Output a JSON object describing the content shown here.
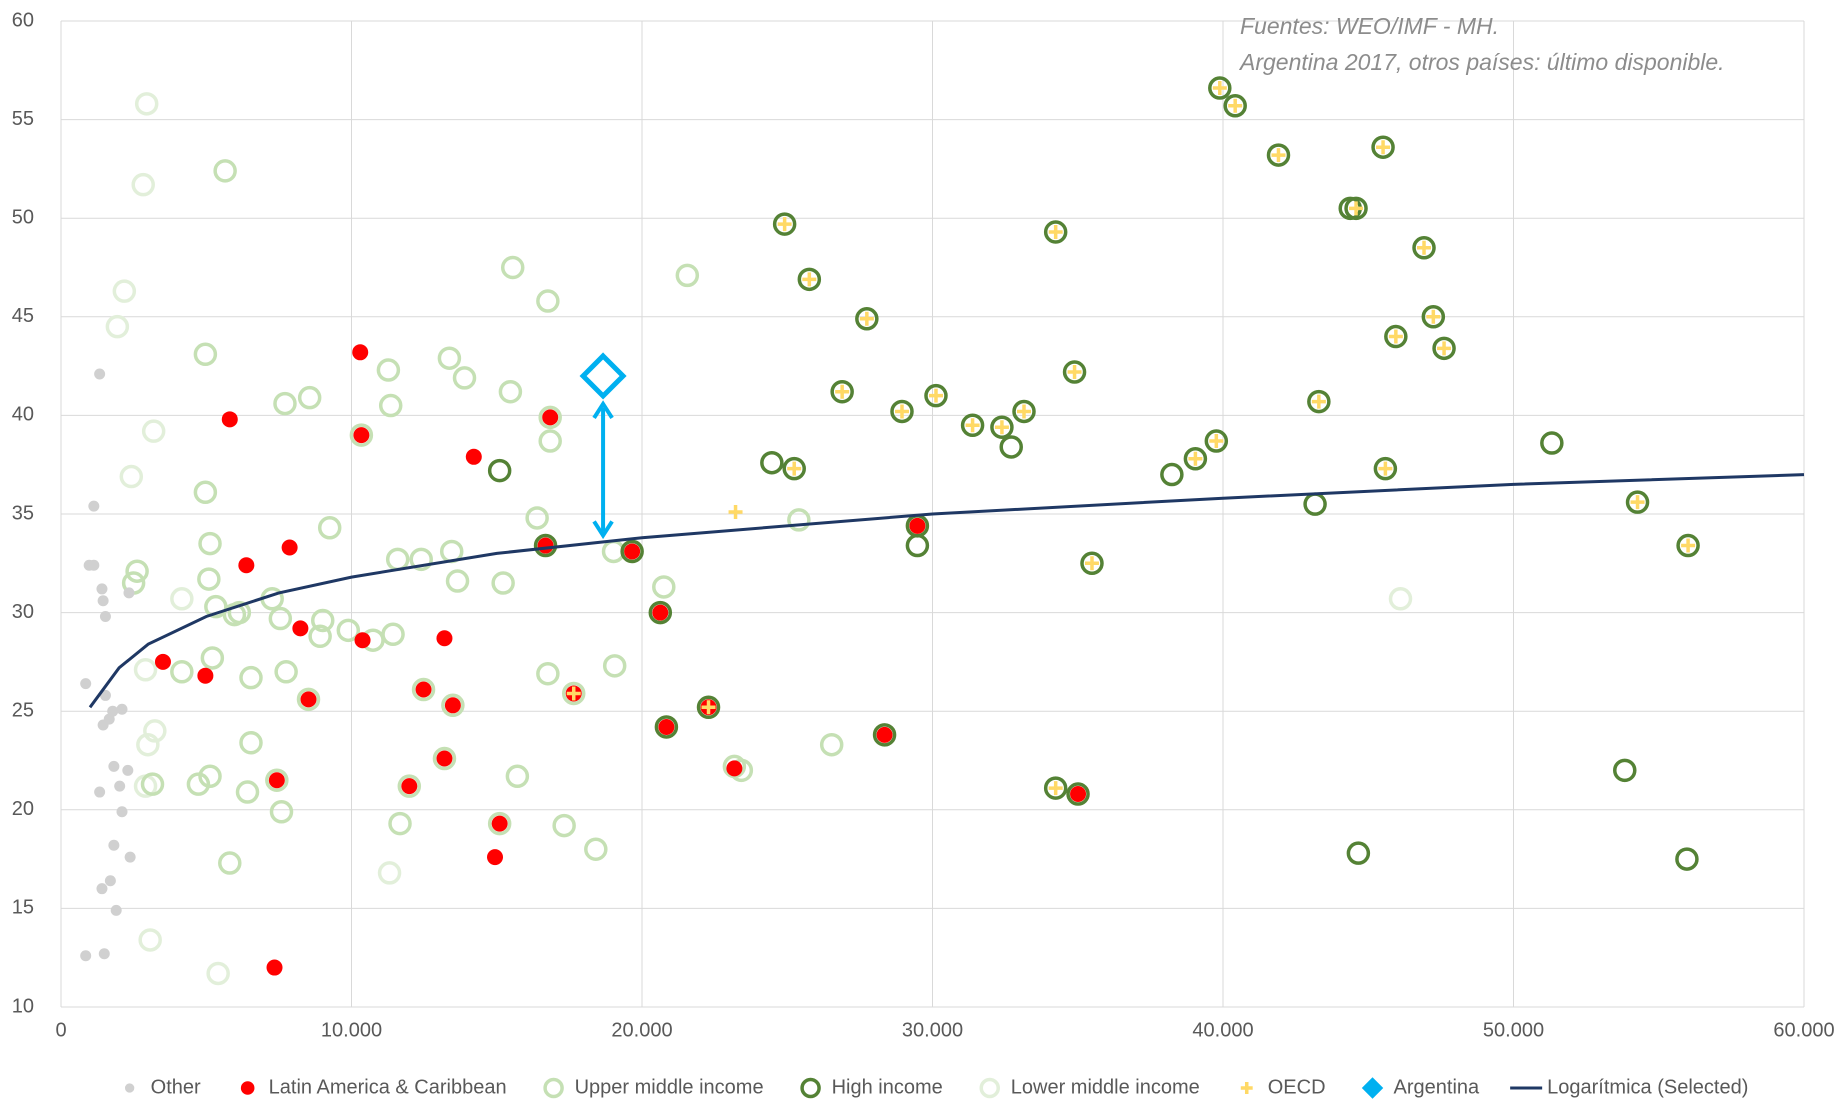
{
  "chart_data": {
    "type": "scatter",
    "annotations": [
      "Fuentes: WEO/IMF - MH.",
      "Argentina 2017, otros países: último disponible."
    ],
    "xlim": [
      0,
      60000
    ],
    "ylim": [
      10,
      60
    ],
    "xticks": [
      0,
      {
        "value": 10000,
        "label": "10.000"
      },
      {
        "value": 20000,
        "label": "20.000"
      },
      {
        "value": 30000,
        "label": "30.000"
      },
      {
        "value": 40000,
        "label": "40.000"
      },
      {
        "value": 50000,
        "label": "50.000"
      },
      {
        "value": 60000,
        "label": "60.000"
      }
    ],
    "yticks": [
      10,
      15,
      20,
      25,
      30,
      35,
      40,
      45,
      50,
      55,
      60
    ],
    "grid": true,
    "legend": "bottom",
    "series": [
      {
        "name": "Other",
        "color": "#d0d0d0",
        "marker": "dot",
        "x": [
          850,
          1330,
          1130,
          970,
          1130,
          1410,
          1450,
          1530,
          2340,
          1330,
          1450,
          1660,
          1530,
          1780,
          2100,
          1820,
          2300,
          2020,
          2100,
          1820,
          2380,
          1700,
          1410,
          1900,
          1490,
          850
        ],
        "y": [
          26.4,
          42.1,
          35.4,
          32.4,
          32.4,
          31.2,
          30.6,
          29.8,
          31.0,
          20.9,
          24.3,
          24.6,
          25.8,
          25.0,
          25.1,
          22.2,
          22.0,
          21.2,
          19.9,
          18.2,
          17.6,
          16.4,
          16.0,
          14.9,
          12.7,
          12.6
        ]
      },
      {
        "name": "Latin America & Caribbean",
        "color": "#ff0000",
        "marker": "dot",
        "x": [
          10300,
          5810,
          16840,
          10340,
          14210,
          16680,
          7870,
          19660,
          6380,
          29480,
          20630,
          8240,
          10380,
          13200,
          3510,
          4970,
          12480,
          17650,
          8520,
          13490,
          22290,
          20840,
          28350,
          13200,
          23180,
          7430,
          11990,
          35010,
          15100,
          14940,
          7350
        ],
        "y": [
          43.2,
          39.8,
          39.9,
          39.0,
          37.9,
          33.4,
          33.3,
          33.1,
          32.4,
          34.4,
          30.0,
          29.2,
          28.6,
          28.7,
          27.5,
          26.8,
          26.1,
          25.9,
          25.6,
          25.3,
          25.2,
          24.2,
          23.8,
          22.6,
          22.1,
          21.5,
          21.2,
          20.8,
          19.3,
          17.6,
          12.0
        ]
      },
      {
        "name": "Upper middle income",
        "color": "#c5e0b4",
        "marker": "ring",
        "x": [
          5650,
          4970,
          15550,
          16760,
          21560,
          8560,
          11270,
          13370,
          13890,
          15470,
          7710,
          11350,
          16840,
          4970,
          9250,
          16390,
          25400,
          5130,
          13450,
          12400,
          11590,
          2620,
          5090,
          13650,
          15220,
          20750,
          2500,
          7270,
          5330,
          6140,
          5970,
          7550,
          9010,
          9890,
          11430,
          8920,
          10740,
          4160,
          5210,
          6540,
          7750,
          16760,
          19060,
          6540,
          26530,
          23180,
          23420,
          15710,
          5130,
          4730,
          3150,
          6420,
          7590,
          11670,
          17320,
          5810,
          18410,
          19020,
          10340,
          16840,
          8520,
          13200,
          13490,
          12480,
          15100,
          11990,
          7430,
          17650
        ],
        "y": [
          52.4,
          43.1,
          47.5,
          45.8,
          47.1,
          40.9,
          42.3,
          42.9,
          41.9,
          41.2,
          40.6,
          40.5,
          38.7,
          36.1,
          34.3,
          34.8,
          34.7,
          33.5,
          33.1,
          32.7,
          32.7,
          32.1,
          31.7,
          31.6,
          31.5,
          31.3,
          31.5,
          30.7,
          30.3,
          30.0,
          29.9,
          29.7,
          29.6,
          29.1,
          28.9,
          28.8,
          28.6,
          27.0,
          27.7,
          26.7,
          27.0,
          26.9,
          27.3,
          23.4,
          23.3,
          22.2,
          22.0,
          21.7,
          21.7,
          21.3,
          21.3,
          20.9,
          19.9,
          19.3,
          19.2,
          17.3,
          18.0,
          33.1,
          39.0,
          39.9,
          25.6,
          22.6,
          25.3,
          26.1,
          19.3,
          21.2,
          21.5,
          25.9
        ]
      },
      {
        "name": "High income",
        "color": "#548235",
        "marker": "ring",
        "x": [
          39890,
          40420,
          41910,
          45510,
          24910,
          34240,
          44380,
          44580,
          46920,
          25760,
          27740,
          47240,
          45950,
          47610,
          34890,
          26890,
          30120,
          43300,
          28950,
          33150,
          31380,
          32390,
          32710,
          39770,
          51320,
          24470,
          25240,
          15100,
          39050,
          38240,
          45590,
          43170,
          54270,
          56010,
          29480,
          29480,
          35490,
          16680,
          19660,
          20630,
          20840,
          22290,
          28350,
          34240,
          35010,
          53830,
          44660,
          55970
        ],
        "y": [
          56.6,
          55.7,
          53.2,
          53.6,
          49.7,
          49.3,
          50.5,
          50.5,
          48.5,
          46.9,
          44.9,
          45.0,
          44.0,
          43.4,
          42.2,
          41.2,
          41.0,
          40.7,
          40.2,
          40.2,
          39.5,
          39.4,
          38.4,
          38.7,
          38.6,
          37.6,
          37.3,
          37.2,
          37.8,
          37.0,
          37.3,
          35.5,
          35.6,
          33.4,
          33.4,
          34.4,
          32.5,
          33.4,
          33.1,
          30.0,
          24.2,
          25.2,
          23.8,
          21.1,
          20.8,
          22.0,
          17.8,
          17.5
        ]
      },
      {
        "name": "Lower middle income",
        "color": "#e2efda",
        "marker": "ring",
        "x": [
          2950,
          2830,
          2180,
          1940,
          3190,
          2420,
          4160,
          2910,
          3230,
          2990,
          2910,
          3070,
          5410,
          11310,
          46110
        ],
        "y": [
          55.8,
          51.7,
          46.3,
          44.5,
          39.2,
          36.9,
          30.7,
          27.1,
          24.0,
          23.3,
          21.2,
          13.4,
          11.7,
          16.8,
          30.7
        ]
      },
      {
        "name": "OECD",
        "color": "#ffd966",
        "marker": "plus",
        "x": [
          39890,
          40420,
          41910,
          45510,
          24910,
          34240,
          44580,
          46920,
          25760,
          27740,
          47240,
          45950,
          47610,
          34890,
          26890,
          30120,
          43300,
          28950,
          33150,
          31380,
          32390,
          39770,
          25240,
          39050,
          45590,
          54270,
          56010,
          35490,
          23220,
          17650,
          22290,
          34240
        ],
        "y": [
          56.6,
          55.7,
          53.2,
          53.6,
          49.7,
          49.3,
          50.5,
          48.5,
          46.9,
          44.9,
          45.0,
          44.0,
          43.4,
          42.2,
          41.2,
          41.0,
          40.7,
          40.2,
          40.2,
          39.5,
          39.4,
          38.7,
          37.3,
          37.8,
          37.3,
          35.6,
          33.4,
          32.5,
          35.1,
          25.9,
          25.2,
          21.1
        ]
      },
      {
        "name": "Argentina",
        "color": "#00b0f0",
        "marker": "diamond",
        "x": [
          18660
        ],
        "y": [
          42.0
        ]
      },
      {
        "name": "Logarítmica (Selected)",
        "color": "#1f3864",
        "marker": "line",
        "x": [
          1000,
          2000,
          3000,
          5000,
          7500,
          10000,
          15000,
          20000,
          30000,
          40000,
          50000,
          60000
        ],
        "y": [
          25.2,
          27.2,
          28.4,
          29.8,
          31.0,
          31.8,
          33.0,
          33.8,
          35.0,
          35.8,
          36.5,
          37.0
        ]
      }
    ]
  }
}
